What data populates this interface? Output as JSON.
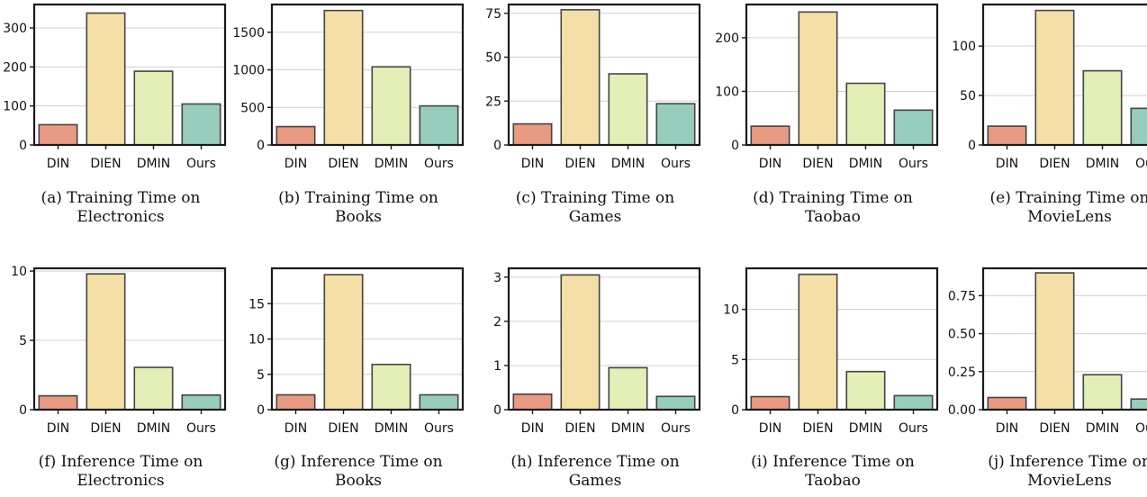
{
  "chart_data": [
    {
      "type": "bar",
      "label": "(a)",
      "caption_lines": [
        "Training Time on",
        "Electronics"
      ],
      "categories": [
        "DIN",
        "DIEN",
        "DMIN",
        "Ours"
      ],
      "values": [
        52,
        338,
        189,
        105
      ],
      "ylim": [
        0,
        360
      ],
      "yticks": [
        0,
        100,
        200,
        300
      ],
      "ytick_labels": [
        "0",
        "100",
        "200",
        "300"
      ],
      "grid": true
    },
    {
      "type": "bar",
      "label": "(b)",
      "caption_lines": [
        "Training Time on",
        "Books"
      ],
      "categories": [
        "DIN",
        "DIEN",
        "DMIN",
        "Ours"
      ],
      "values": [
        245,
        1790,
        1040,
        520
      ],
      "ylim": [
        0,
        1870
      ],
      "yticks": [
        0,
        500,
        1000,
        1500
      ],
      "ytick_labels": [
        "0",
        "500",
        "1000",
        "1500"
      ],
      "grid": true
    },
    {
      "type": "bar",
      "label": "(c)",
      "caption_lines": [
        "Training Time on",
        "Games"
      ],
      "categories": [
        "DIN",
        "DIEN",
        "DMIN",
        "Ours"
      ],
      "values": [
        12,
        77,
        40.5,
        23.5
      ],
      "ylim": [
        0,
        80
      ],
      "yticks": [
        0,
        25,
        50,
        75
      ],
      "ytick_labels": [
        "0",
        "25",
        "50",
        "75"
      ],
      "grid": true
    },
    {
      "type": "bar",
      "label": "(d)",
      "caption_lines": [
        "Training Time on",
        "Taobao"
      ],
      "categories": [
        "DIN",
        "DIEN",
        "DMIN",
        "Ours"
      ],
      "values": [
        35,
        248,
        115,
        65
      ],
      "ylim": [
        0,
        262
      ],
      "yticks": [
        0,
        100,
        200
      ],
      "ytick_labels": [
        "0",
        "100",
        "200"
      ],
      "grid": true
    },
    {
      "type": "bar",
      "label": "(e)",
      "caption_lines": [
        "Training Time on",
        "MovieLens"
      ],
      "categories": [
        "DIN",
        "DIEN",
        "DMIN",
        "Ours"
      ],
      "values": [
        19,
        136,
        75,
        37
      ],
      "ylim": [
        0,
        142
      ],
      "yticks": [
        0,
        50,
        100
      ],
      "ytick_labels": [
        "0",
        "50",
        "100"
      ],
      "grid": true
    },
    {
      "type": "bar",
      "label": "(f)",
      "caption_lines": [
        "Inference Time on",
        "Electronics"
      ],
      "categories": [
        "DIN",
        "DIEN",
        "DMIN",
        "Ours"
      ],
      "values": [
        1.0,
        9.8,
        3.05,
        1.05
      ],
      "ylim": [
        0,
        10.2
      ],
      "yticks": [
        0,
        5,
        10
      ],
      "ytick_labels": [
        "0",
        "5",
        "10"
      ],
      "grid": true
    },
    {
      "type": "bar",
      "label": "(g)",
      "caption_lines": [
        "Inference Time on",
        "Books"
      ],
      "categories": [
        "DIN",
        "DIEN",
        "DMIN",
        "Ours"
      ],
      "values": [
        2.1,
        19.1,
        6.4,
        2.1
      ],
      "ylim": [
        0,
        20
      ],
      "yticks": [
        0,
        5,
        10,
        15
      ],
      "ytick_labels": [
        "0",
        "5",
        "10",
        "15"
      ],
      "grid": true
    },
    {
      "type": "bar",
      "label": "(h)",
      "caption_lines": [
        "Inference Time on",
        "Games"
      ],
      "categories": [
        "DIN",
        "DIEN",
        "DMIN",
        "Ours"
      ],
      "values": [
        0.35,
        3.05,
        0.95,
        0.3
      ],
      "ylim": [
        0,
        3.2
      ],
      "yticks": [
        0,
        1,
        2,
        3
      ],
      "ytick_labels": [
        "0",
        "1",
        "2",
        "3"
      ],
      "grid": true
    },
    {
      "type": "bar",
      "label": "(i)",
      "caption_lines": [
        "Inference Time on",
        "Taobao"
      ],
      "categories": [
        "DIN",
        "DIEN",
        "DMIN",
        "Ours"
      ],
      "values": [
        1.3,
        13.5,
        3.8,
        1.4
      ],
      "ylim": [
        0,
        14.1
      ],
      "yticks": [
        0,
        5,
        10
      ],
      "ytick_labels": [
        "0",
        "5",
        "10"
      ],
      "grid": true
    },
    {
      "type": "bar",
      "label": "(j)",
      "caption_lines": [
        "Inference Time on",
        "MovieLens"
      ],
      "categories": [
        "DIN",
        "DIEN",
        "DMIN",
        "Ours"
      ],
      "values": [
        0.08,
        0.9,
        0.23,
        0.07
      ],
      "ylim": [
        0,
        0.93
      ],
      "yticks": [
        0,
        0.25,
        0.5,
        0.75
      ],
      "ytick_labels": [
        "0.00",
        "0.25",
        "0.50",
        "0.75"
      ],
      "grid": true
    }
  ],
  "colors": {
    "DIN": "#e89a82",
    "DIEN": "#f4dfa6",
    "DMIN": "#e3efb7",
    "Ours": "#96cdbd",
    "bar_edge": "#444444",
    "frame": "#1a1a1a",
    "grid": "#d0d0d0"
  }
}
